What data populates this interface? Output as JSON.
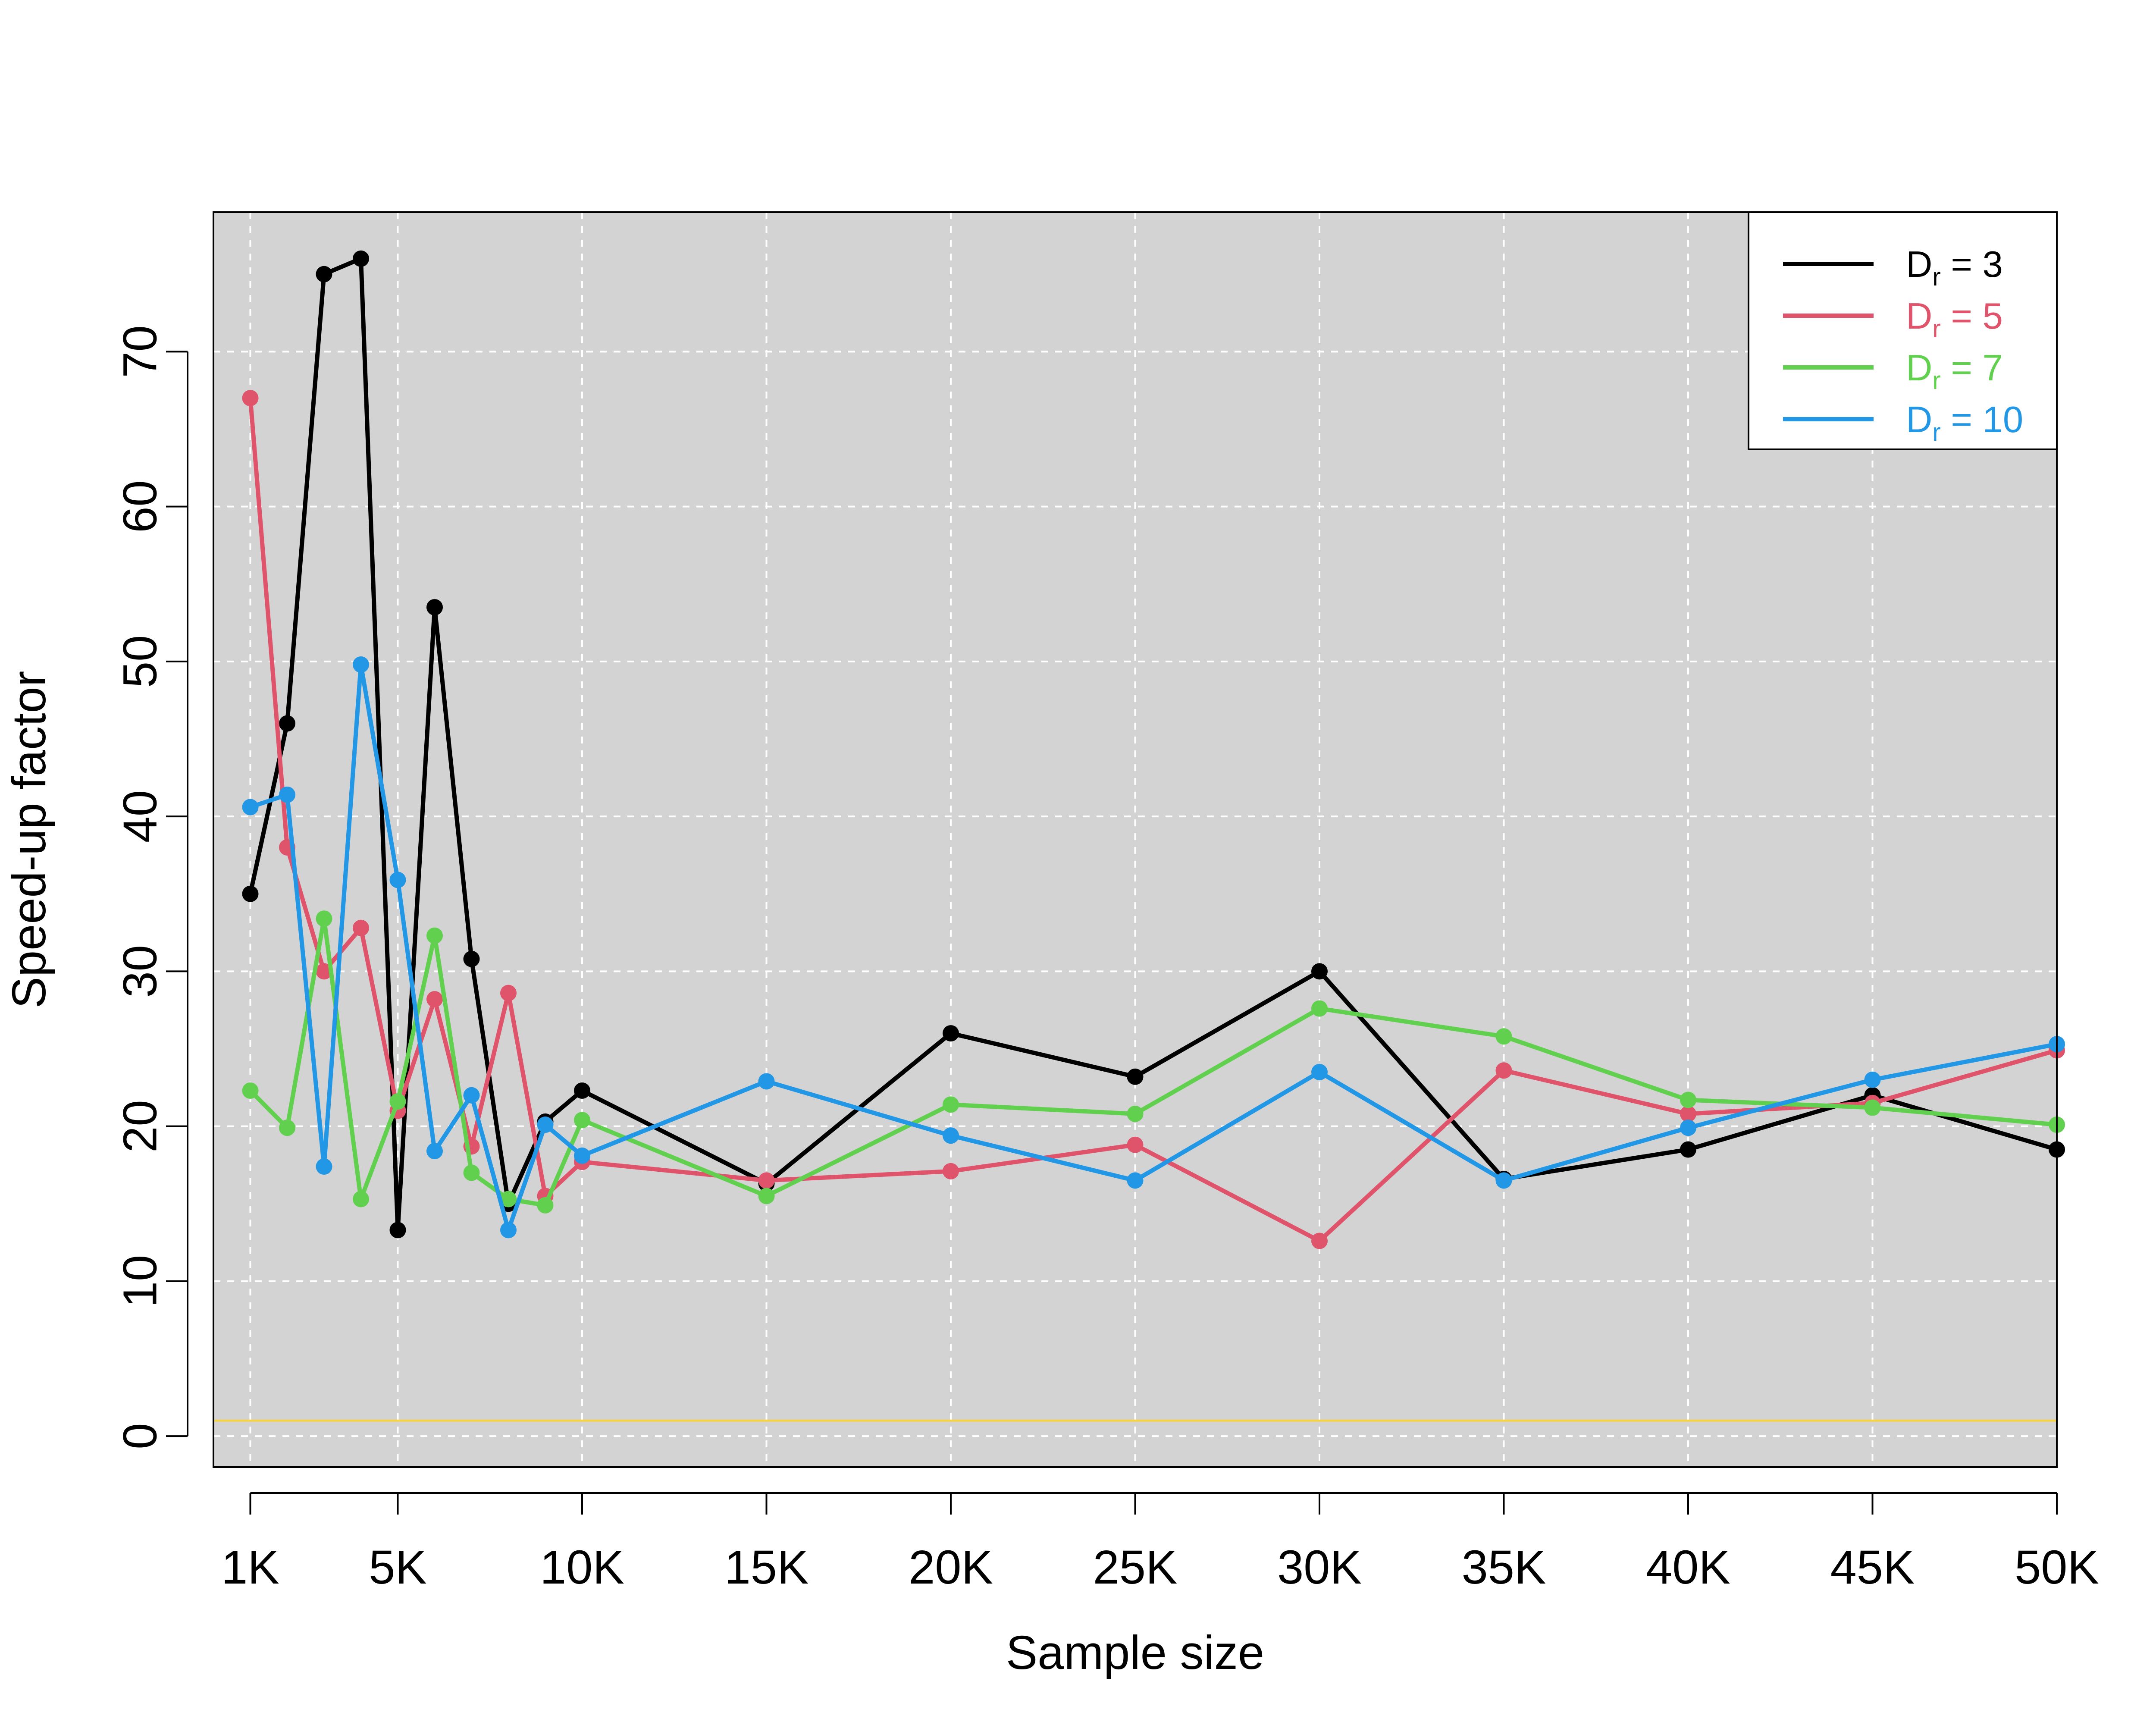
{
  "chart_data": {
    "type": "line",
    "title": "",
    "xlabel": "Sample size",
    "ylabel": "Speed-up factor",
    "xlim": [
      0,
      50000
    ],
    "ylim": [
      -2,
      79
    ],
    "x_ticks": [
      1000,
      5000,
      10000,
      15000,
      20000,
      25000,
      30000,
      35000,
      40000,
      45000,
      50000
    ],
    "x_tick_labels": [
      "1K",
      "5K",
      "10K",
      "15K",
      "20K",
      "25K",
      "30K",
      "35K",
      "40K",
      "45K",
      "50K"
    ],
    "y_ticks": [
      0,
      10,
      20,
      30,
      40,
      50,
      60,
      70
    ],
    "y_tick_labels": [
      "0",
      "10",
      "20",
      "30",
      "40",
      "50",
      "60",
      "70"
    ],
    "grid": true,
    "background": "#d3d3d3",
    "reference_line": {
      "y": 1,
      "color": "#f5d547"
    },
    "legend": {
      "position": "top-right"
    },
    "x": [
      1000,
      2000,
      3000,
      4000,
      5000,
      6000,
      7000,
      8000,
      9000,
      10000,
      15000,
      20000,
      25000,
      30000,
      35000,
      40000,
      45000,
      50000
    ],
    "series": [
      {
        "name": "3",
        "color": "#000000",
        "values": [
          35.0,
          46.0,
          75.0,
          76.0,
          13.3,
          53.5,
          30.8,
          15.0,
          20.3,
          22.3,
          16.3,
          26.0,
          23.2,
          30.0,
          16.6,
          18.5,
          22.0,
          18.5
        ]
      },
      {
        "name": "5",
        "color": "#df536b",
        "values": [
          67.0,
          38.0,
          30.0,
          32.8,
          21.0,
          28.2,
          18.7,
          28.6,
          15.5,
          17.7,
          16.5,
          17.1,
          18.8,
          12.6,
          23.6,
          20.8,
          21.5,
          24.9
        ]
      },
      {
        "name": "7",
        "color": "#61d04f",
        "values": [
          22.3,
          19.9,
          33.4,
          15.3,
          21.6,
          32.3,
          17.0,
          15.3,
          14.9,
          20.4,
          15.5,
          21.4,
          20.8,
          27.6,
          25.8,
          21.7,
          21.2,
          20.1
        ]
      },
      {
        "name": "10",
        "color": "#2297e6",
        "values": [
          40.6,
          41.4,
          17.4,
          49.8,
          35.9,
          18.4,
          22.0,
          13.3,
          20.1,
          18.1,
          22.9,
          19.4,
          16.5,
          23.5,
          16.5,
          19.9,
          23.0,
          25.3
        ]
      }
    ]
  }
}
